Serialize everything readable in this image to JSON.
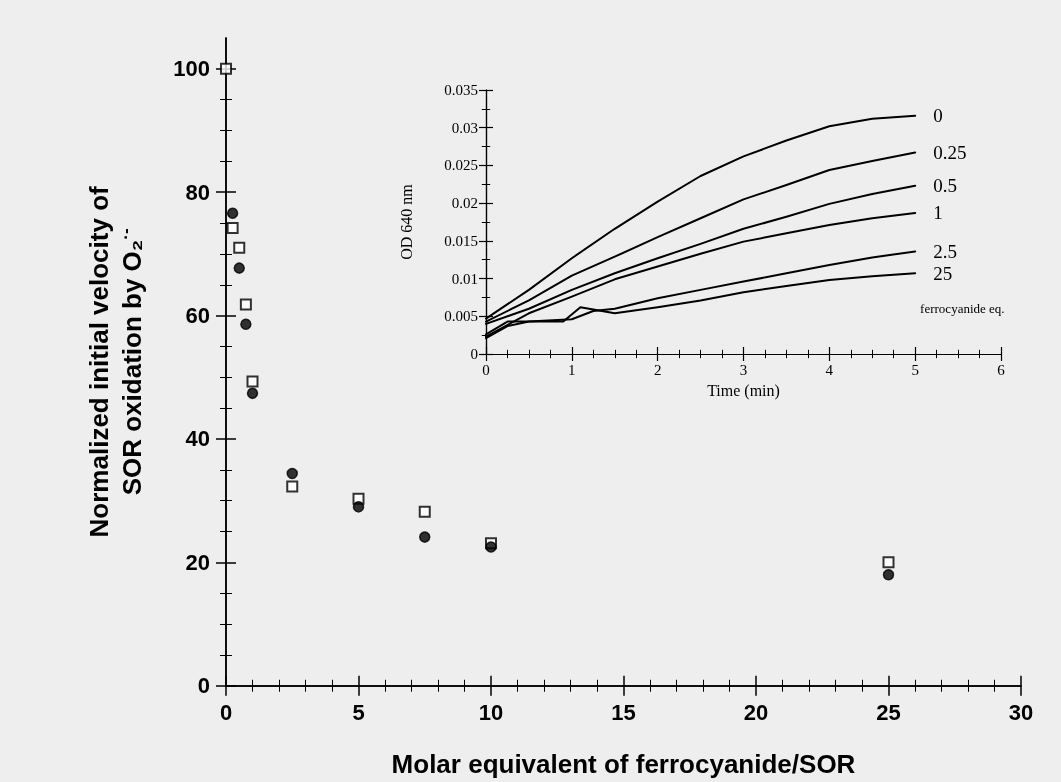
{
  "chart_data": [
    {
      "type": "scatter",
      "xlabel": "Molar equivalent of ferrocyanide/SOR",
      "ylabel": "Normalized initial velocity of\nSOR oxidation by O₂$^{·-}$",
      "xlim": [
        0,
        30
      ],
      "xticks": [
        0,
        5,
        10,
        15,
        20,
        25,
        30
      ],
      "ylim": [
        0,
        105
      ],
      "yticks": [
        0,
        20,
        40,
        60,
        80,
        100
      ],
      "grid": false,
      "legend": false,
      "series": [
        {
          "color": "#000000",
          "marker": "square",
          "x": [
            0,
            0.25,
            0.5,
            0.75,
            1,
            2.5,
            5,
            7.5,
            10,
            25
          ],
          "values": [
            100,
            74.2,
            71,
            61.8,
            49.3,
            32.3,
            30.3,
            28.2,
            23.1,
            20
          ]
        },
        {
          "color": "#000000",
          "marker": "circle",
          "x": [
            0.25,
            0.5,
            0.75,
            1,
            2.5,
            5,
            7.5,
            10,
            25
          ],
          "values": [
            76.6,
            67.7,
            58.6,
            47.4,
            34.4,
            29,
            24.1,
            22.5,
            18
          ]
        }
      ]
    },
    {
      "type": "line",
      "xlabel": "Time (min)",
      "ylabel": "OD 640 nm",
      "xlim": [
        0,
        6
      ],
      "xticks": [
        0,
        1,
        2,
        3,
        4,
        5,
        6
      ],
      "ylim": [
        0,
        0.035
      ],
      "yticks": [
        0,
        0.005,
        0.01,
        0.015,
        0.02,
        0.025,
        0.03,
        0.035
      ],
      "grid": false,
      "legend": false,
      "marker": "none",
      "annotations": [
        "ferrocyanide eq."
      ],
      "series": [
        {
          "name": "0",
          "color": "#000000",
          "x": [
            0,
            0.5,
            1,
            1.5,
            2,
            2.5,
            3,
            3.5,
            4,
            4.5,
            5
          ],
          "values": [
            0.0047,
            0.0085,
            0.0127,
            0.0166,
            0.0202,
            0.0236,
            0.0262,
            0.0283,
            0.0302,
            0.0312,
            0.0316
          ]
        },
        {
          "name": "0.25",
          "color": "#000000",
          "x": [
            0,
            0.5,
            1,
            1.5,
            2,
            2.5,
            3,
            3.5,
            4,
            4.5,
            5
          ],
          "values": [
            0.0043,
            0.0071,
            0.0104,
            0.0129,
            0.0155,
            0.018,
            0.0205,
            0.0224,
            0.0244,
            0.0256,
            0.0267
          ]
        },
        {
          "name": "0.5",
          "color": "#000000",
          "x": [
            0,
            0.5,
            1,
            1.5,
            2,
            2.5,
            3,
            3.5,
            4,
            4.5,
            5
          ],
          "values": [
            0.004,
            0.006,
            0.0085,
            0.0107,
            0.0127,
            0.0146,
            0.0166,
            0.0182,
            0.0199,
            0.0212,
            0.0223
          ]
        },
        {
          "name": "1",
          "color": "#000000",
          "x": [
            0,
            0.5,
            1,
            1.5,
            2,
            2.5,
            3,
            3.5,
            4,
            4.5,
            5
          ],
          "values": [
            0.0023,
            0.0054,
            0.0076,
            0.0099,
            0.0116,
            0.0133,
            0.0149,
            0.016,
            0.0171,
            0.018,
            0.0187
          ]
        },
        {
          "name": "2.5",
          "color": "#000000",
          "x": [
            0,
            0.25,
            0.5,
            1,
            1.25,
            1.5,
            2,
            2.5,
            3,
            3.5,
            4,
            4.5,
            5
          ],
          "values": [
            0.0021,
            0.0037,
            0.0043,
            0.0046,
            0.0057,
            0.006,
            0.0074,
            0.0085,
            0.0096,
            0.0107,
            0.0118,
            0.0128,
            0.0136
          ]
        },
        {
          "name": "25",
          "color": "#000000",
          "x": [
            0,
            0.25,
            0.5,
            0.9,
            1.1,
            1.5,
            2,
            2.5,
            3,
            3.5,
            4,
            4.5,
            5
          ],
          "values": [
            0.0026,
            0.0043,
            0.0043,
            0.0043,
            0.0062,
            0.0054,
            0.0062,
            0.0071,
            0.0082,
            0.009,
            0.0098,
            0.0103,
            0.0107
          ]
        }
      ]
    }
  ]
}
